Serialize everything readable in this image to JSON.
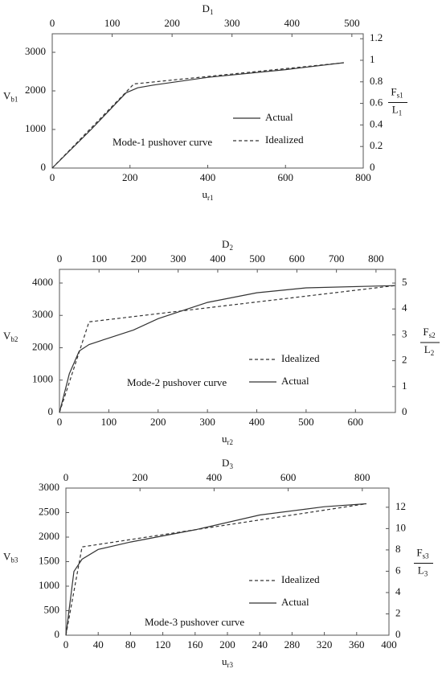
{
  "chart_data": [
    {
      "type": "line",
      "annotation": "Mode-1 pushover curve",
      "xlabel": {
        "text": "u",
        "sub": "r1"
      },
      "ylabel": {
        "text": "V",
        "sub": "b1"
      },
      "x2label": {
        "text": "D",
        "sub": "1"
      },
      "y2label": {
        "numerator": {
          "text": "F",
          "sub": "s1"
        },
        "denominator": {
          "text": "L",
          "sub": "1"
        }
      },
      "xlim": [
        0,
        800
      ],
      "xticks": [
        0,
        200,
        400,
        600,
        800
      ],
      "ylim": [
        0,
        3480
      ],
      "yticks": [
        0,
        1000,
        2000,
        3000
      ],
      "x2lim": [
        0,
        519
      ],
      "x2ticks": [
        0,
        100,
        200,
        300,
        400,
        500
      ],
      "y2lim": [
        0,
        1.246
      ],
      "y2ticks": [
        0,
        0.2,
        0.4,
        0.6,
        0.8,
        1,
        1.2
      ],
      "series": [
        {
          "name": "Actual",
          "color": "#333333",
          "dash": false,
          "x": [
            0,
            100,
            190,
            220,
            260,
            400,
            600,
            750
          ],
          "values": [
            0,
            1000,
            1950,
            2080,
            2150,
            2350,
            2550,
            2730
          ]
        },
        {
          "name": "Idealized",
          "color": "#333333",
          "dash": true,
          "x": [
            0,
            210,
            750
          ],
          "values": [
            0,
            2180,
            2730
          ]
        }
      ]
    },
    {
      "type": "line",
      "annotation": "Mode-2 pushover curve",
      "xlabel": {
        "text": "u",
        "sub": "r2"
      },
      "ylabel": {
        "text": "V",
        "sub": "b2"
      },
      "x2label": {
        "text": "D",
        "sub": "2"
      },
      "y2label": {
        "numerator": {
          "text": "F",
          "sub": "s2"
        },
        "denominator": {
          "text": "L",
          "sub": "2"
        }
      },
      "xlim": [
        0,
        681
      ],
      "xticks": [
        0,
        100,
        200,
        300,
        400,
        500,
        600
      ],
      "ylim": [
        0,
        4422
      ],
      "yticks": [
        0,
        1000,
        2000,
        3000,
        4000
      ],
      "x2lim": [
        0,
        849
      ],
      "x2ticks": [
        0,
        100,
        200,
        300,
        400,
        500,
        600,
        700,
        800
      ],
      "y2lim": [
        0,
        5.53
      ],
      "y2ticks": [
        0,
        1,
        2,
        3,
        4,
        5
      ],
      "series": [
        {
          "name": "Idealized",
          "color": "#333333",
          "dash": true,
          "x": [
            0,
            60,
            680
          ],
          "values": [
            0,
            2800,
            3920
          ]
        },
        {
          "name": "Actual",
          "color": "#333333",
          "dash": false,
          "x": [
            0,
            20,
            40,
            60,
            100,
            150,
            200,
            300,
            400,
            500,
            680
          ],
          "values": [
            0,
            1200,
            1900,
            2100,
            2300,
            2550,
            2900,
            3400,
            3700,
            3850,
            3920
          ]
        }
      ]
    },
    {
      "type": "line",
      "annotation": "Mode-3 pushover curve",
      "xlabel": {
        "text": "u",
        "sub": "r3"
      },
      "ylabel": {
        "text": "V",
        "sub": "b3"
      },
      "x2label": {
        "text": "D",
        "sub": "3"
      },
      "y2label": {
        "numerator": {
          "text": "F",
          "sub": "s3"
        },
        "denominator": {
          "text": "L",
          "sub": "3"
        }
      },
      "xlim": [
        0,
        400
      ],
      "xticks": [
        0,
        40,
        80,
        120,
        160,
        200,
        240,
        280,
        320,
        360,
        400
      ],
      "ylim": [
        0,
        3000
      ],
      "yticks": [
        0,
        500,
        1000,
        1500,
        2000,
        2500,
        3000
      ],
      "x2lim": [
        0,
        872
      ],
      "x2ticks": [
        0,
        200,
        400,
        600,
        800
      ],
      "y2lim": [
        0,
        13.8
      ],
      "y2ticks": [
        0,
        2,
        4,
        6,
        8,
        10,
        12
      ],
      "series": [
        {
          "name": "Idealized",
          "color": "#333333",
          "dash": true,
          "x": [
            0,
            20,
            372
          ],
          "values": [
            0,
            1800,
            2680
          ]
        },
        {
          "name": "Actual",
          "color": "#333333",
          "dash": false,
          "x": [
            0,
            10,
            20,
            40,
            80,
            160,
            240,
            320,
            372
          ],
          "values": [
            0,
            1300,
            1550,
            1750,
            1900,
            2150,
            2450,
            2620,
            2680
          ]
        }
      ]
    }
  ]
}
